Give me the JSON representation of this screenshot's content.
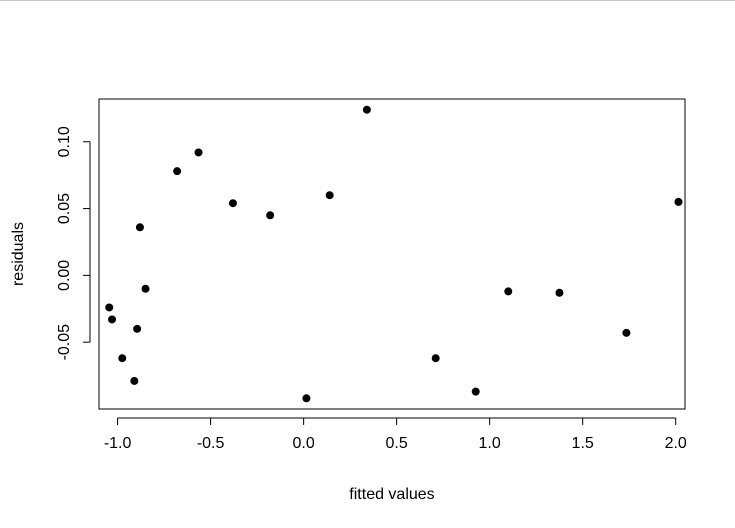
{
  "chart_data": {
    "type": "scatter",
    "title": "",
    "xlabel": "fitted values",
    "ylabel": "residuals",
    "xlim": [
      -1.1,
      2.05
    ],
    "ylim": [
      -0.1,
      0.132
    ],
    "x_ticks": [
      {
        "value": -1.0,
        "label": "-1.0"
      },
      {
        "value": -0.5,
        "label": "-0.5"
      },
      {
        "value": 0.0,
        "label": "0.0"
      },
      {
        "value": 0.5,
        "label": "0.5"
      },
      {
        "value": 1.0,
        "label": "1.0"
      },
      {
        "value": 1.5,
        "label": "1.5"
      },
      {
        "value": 2.0,
        "label": "2.0"
      }
    ],
    "y_ticks": [
      {
        "value": -0.05,
        "label": "-0.05"
      },
      {
        "value": 0.0,
        "label": "0.00"
      },
      {
        "value": 0.05,
        "label": "0.05"
      },
      {
        "value": 0.1,
        "label": "0.10"
      }
    ],
    "grid": false,
    "point_color": "#000000",
    "series": [
      {
        "points": [
          {
            "x": -1.045,
            "y": -0.024
          },
          {
            "x": -1.03,
            "y": -0.033
          },
          {
            "x": -0.975,
            "y": -0.062
          },
          {
            "x": -0.91,
            "y": -0.079
          },
          {
            "x": -0.895,
            "y": -0.04
          },
          {
            "x": -0.88,
            "y": 0.036
          },
          {
            "x": -0.85,
            "y": -0.01
          },
          {
            "x": -0.68,
            "y": 0.078
          },
          {
            "x": -0.565,
            "y": 0.092
          },
          {
            "x": -0.38,
            "y": 0.054
          },
          {
            "x": -0.18,
            "y": 0.045
          },
          {
            "x": 0.015,
            "y": -0.092
          },
          {
            "x": 0.14,
            "y": 0.06
          },
          {
            "x": 0.34,
            "y": 0.124
          },
          {
            "x": 0.71,
            "y": -0.062
          },
          {
            "x": 0.925,
            "y": -0.087
          },
          {
            "x": 1.1,
            "y": -0.012
          },
          {
            "x": 1.375,
            "y": -0.013
          },
          {
            "x": 1.735,
            "y": -0.043
          },
          {
            "x": 2.015,
            "y": 0.055
          }
        ]
      }
    ]
  }
}
